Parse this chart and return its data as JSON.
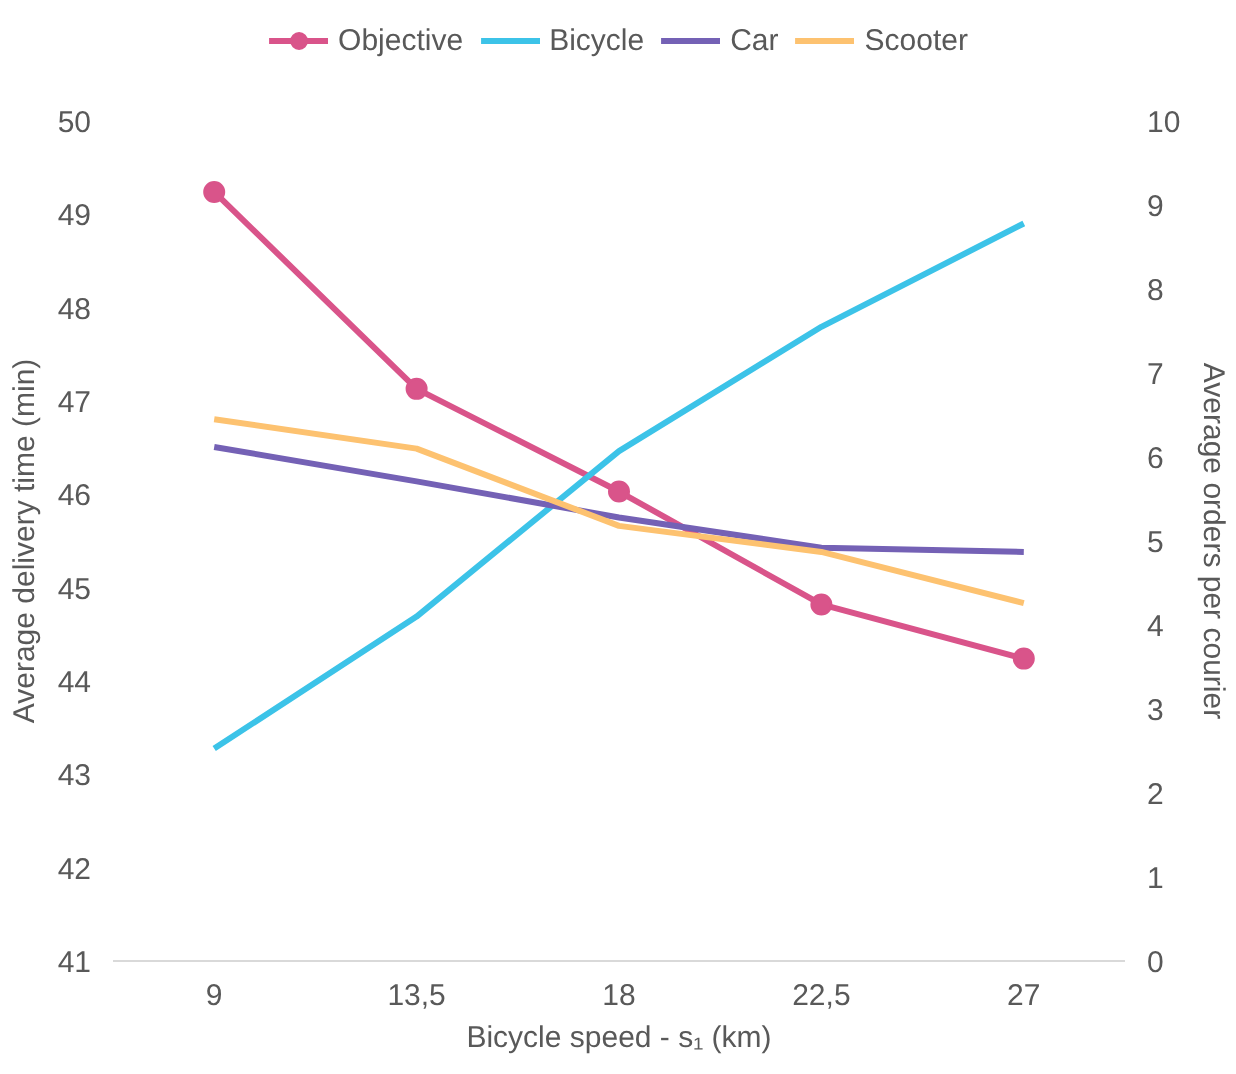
{
  "chart_data": {
    "type": "line",
    "xlabel": "Bicycle speed - s₁ (km)",
    "ylabel": "Average delivery time (min)",
    "y2label": "Average orders per courier",
    "categories": [
      "9",
      "13,5",
      "18",
      "22,5",
      "27"
    ],
    "ylim": [
      41,
      50
    ],
    "yticks": [
      41,
      42,
      43,
      44,
      45,
      46,
      47,
      48,
      49,
      50
    ],
    "y2lim": [
      0,
      10
    ],
    "y2ticks": [
      0,
      1,
      2,
      3,
      4,
      5,
      6,
      7,
      8,
      9,
      10
    ],
    "legend": "top",
    "series": [
      {
        "name": "Objective",
        "color": "#d9548a",
        "marker": "circle",
        "values": [
          49.24,
          47.13,
          46.03,
          44.82,
          44.24
        ]
      },
      {
        "name": "Bicycle",
        "color": "#3cc3e8",
        "axis": "y2",
        "values": [
          2.53,
          4.1,
          6.07,
          7.55,
          8.78
        ]
      },
      {
        "name": "Car",
        "color": "#7461b5",
        "axis": "y2",
        "values": [
          6.12,
          5.71,
          5.28,
          4.92,
          4.87
        ]
      },
      {
        "name": "Scooter",
        "color": "#fdc270",
        "axis": "y2",
        "values": [
          6.45,
          6.1,
          5.18,
          4.87,
          4.26
        ]
      }
    ]
  }
}
